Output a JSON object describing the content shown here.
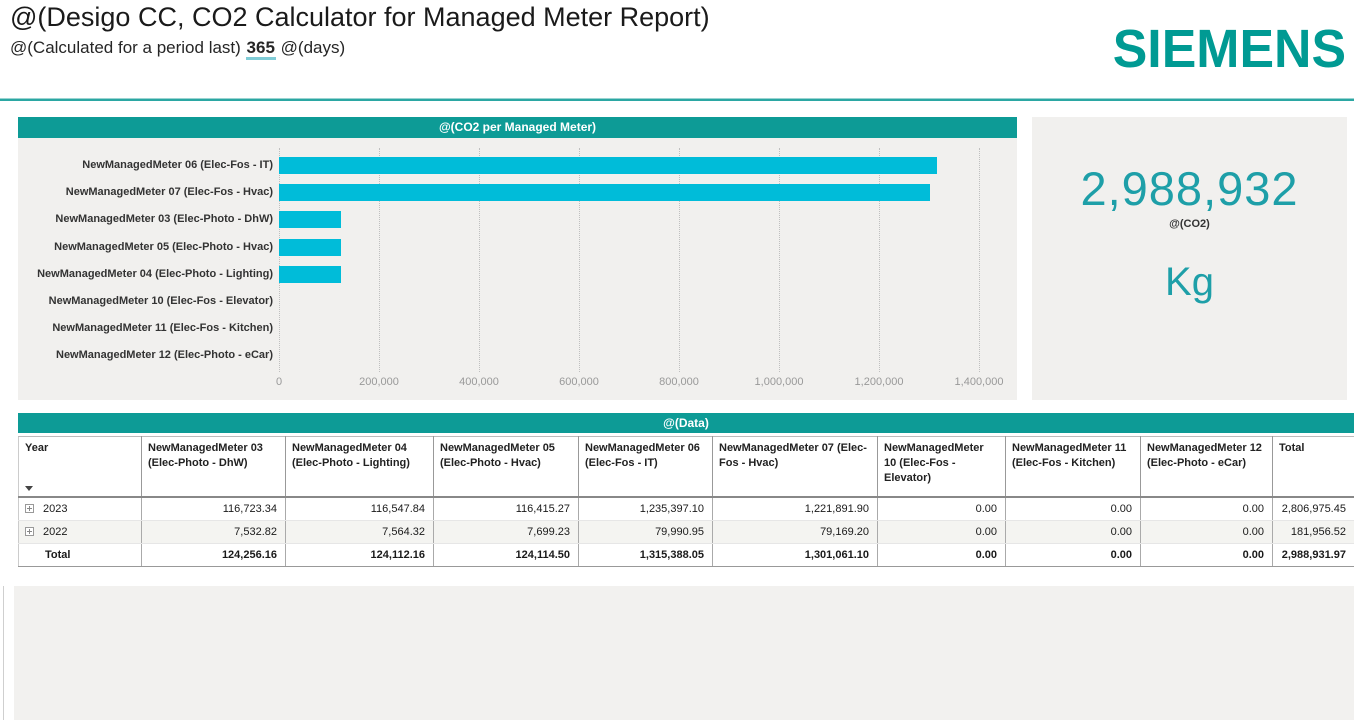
{
  "header": {
    "title": "@(Desigo CC, CO2 Calculator for Managed Meter Report)",
    "subtitle_prefix": "@(Calculated for a period last)",
    "days_value": "365",
    "subtitle_suffix": "@(days)",
    "logo_text": "SIEMENS"
  },
  "colors": {
    "teal_bar": "#0D9B96",
    "bar_cyan": "#00BCD9",
    "accent_text": "#1E9FA8",
    "logo_teal": "#009A93",
    "panel_bg": "#F1F0EE"
  },
  "chart_data": {
    "type": "bar",
    "orientation": "horizontal",
    "title": "@(CO2 per Managed Meter)",
    "categories": [
      "NewManagedMeter 06 (Elec-Fos - IT)",
      "NewManagedMeter 07 (Elec-Fos - Hvac)",
      "NewManagedMeter 03 (Elec-Photo - DhW)",
      "NewManagedMeter 05 (Elec-Photo - Hvac)",
      "NewManagedMeter 04 (Elec-Photo - Lighting)",
      "NewManagedMeter 10 (Elec-Fos - Elevator)",
      "NewManagedMeter 11 (Elec-Fos - Kitchen)",
      "NewManagedMeter 12 (Elec-Photo - eCar)"
    ],
    "values": [
      1315388.05,
      1301061.1,
      124256.16,
      124114.5,
      124112.16,
      0,
      0,
      0
    ],
    "xlabel": "",
    "ylabel": "",
    "xlim": [
      0,
      1400000
    ],
    "x_ticks": [
      "0",
      "200,000",
      "400,000",
      "600,000",
      "800,000",
      "1,000,000",
      "1,200,000",
      "1,400,000"
    ],
    "grid": "vertical-dotted",
    "legend": "none"
  },
  "summary": {
    "value": "2,988,932",
    "label": "@(CO2)",
    "unit": "Kg"
  },
  "table": {
    "title": "@(Data)",
    "columns": [
      "Year",
      "NewManagedMeter 03 (Elec-Photo - DhW)",
      "NewManagedMeter 04 (Elec-Photo - Lighting)",
      "NewManagedMeter 05 (Elec-Photo - Hvac)",
      "NewManagedMeter 06 (Elec-Fos - IT)",
      "NewManagedMeter 07 (Elec-Fos - Hvac)",
      "NewManagedMeter 10 (Elec-Fos - Elevator)",
      "NewManagedMeter 11 (Elec-Fos - Kitchen)",
      "NewManagedMeter 12 (Elec-Photo - eCar)",
      "Total"
    ],
    "rows": [
      {
        "label": "2023",
        "expandable": true,
        "bold": false,
        "values": [
          "116,723.34",
          "116,547.84",
          "116,415.27",
          "1,235,397.10",
          "1,221,891.90",
          "0.00",
          "0.00",
          "0.00",
          "2,806,975.45"
        ]
      },
      {
        "label": "2022",
        "expandable": true,
        "bold": false,
        "values": [
          "7,532.82",
          "7,564.32",
          "7,699.23",
          "79,990.95",
          "79,169.20",
          "0.00",
          "0.00",
          "0.00",
          "181,956.52"
        ]
      },
      {
        "label": "Total",
        "expandable": false,
        "bold": true,
        "values": [
          "124,256.16",
          "124,112.16",
          "124,114.50",
          "1,315,388.05",
          "1,301,061.10",
          "0.00",
          "0.00",
          "0.00",
          "2,988,931.97"
        ]
      }
    ]
  }
}
